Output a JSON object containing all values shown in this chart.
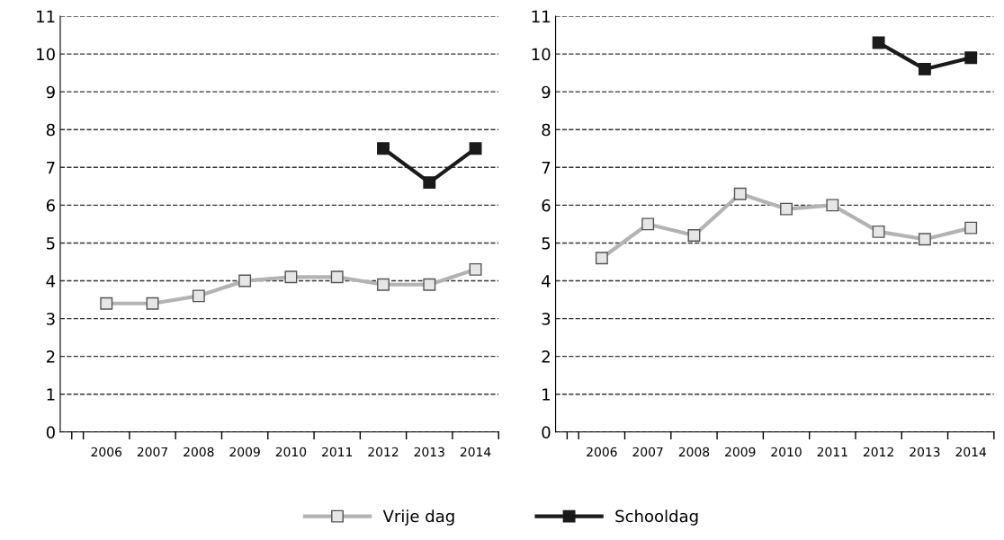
{
  "chart_data": [
    {
      "type": "line",
      "categories": [
        "2006",
        "2007",
        "2008",
        "2009",
        "2010",
        "2011",
        "2012",
        "2013",
        "2014"
      ],
      "ylim": [
        0,
        11
      ],
      "yticks": [
        0,
        1,
        2,
        3,
        4,
        5,
        6,
        7,
        8,
        9,
        10,
        11
      ],
      "grid": "y",
      "marker": "square",
      "legend": "bottom",
      "series": [
        {
          "name": "Vrije dag",
          "color": "#b3b3b3",
          "values": [
            3.4,
            3.4,
            3.6,
            4.0,
            4.1,
            4.1,
            3.9,
            3.9,
            4.3
          ]
        },
        {
          "name": "Schooldag",
          "color": "#1a1a1a",
          "values": [
            null,
            null,
            null,
            null,
            null,
            null,
            7.5,
            6.6,
            7.5
          ]
        }
      ]
    },
    {
      "type": "line",
      "categories": [
        "2006",
        "2007",
        "2008",
        "2009",
        "2010",
        "2011",
        "2012",
        "2013",
        "2014"
      ],
      "ylim": [
        0,
        11
      ],
      "yticks": [
        0,
        1,
        2,
        3,
        4,
        5,
        6,
        7,
        8,
        9,
        10,
        11
      ],
      "grid": "y",
      "marker": "square",
      "series": [
        {
          "name": "Vrije dag",
          "color": "#b3b3b3",
          "values": [
            4.6,
            5.5,
            5.2,
            6.3,
            5.9,
            6.0,
            5.3,
            5.1,
            5.4
          ]
        },
        {
          "name": "Schooldag",
          "color": "#1a1a1a",
          "values": [
            null,
            null,
            null,
            null,
            null,
            null,
            10.3,
            9.6,
            9.9
          ]
        }
      ]
    }
  ]
}
